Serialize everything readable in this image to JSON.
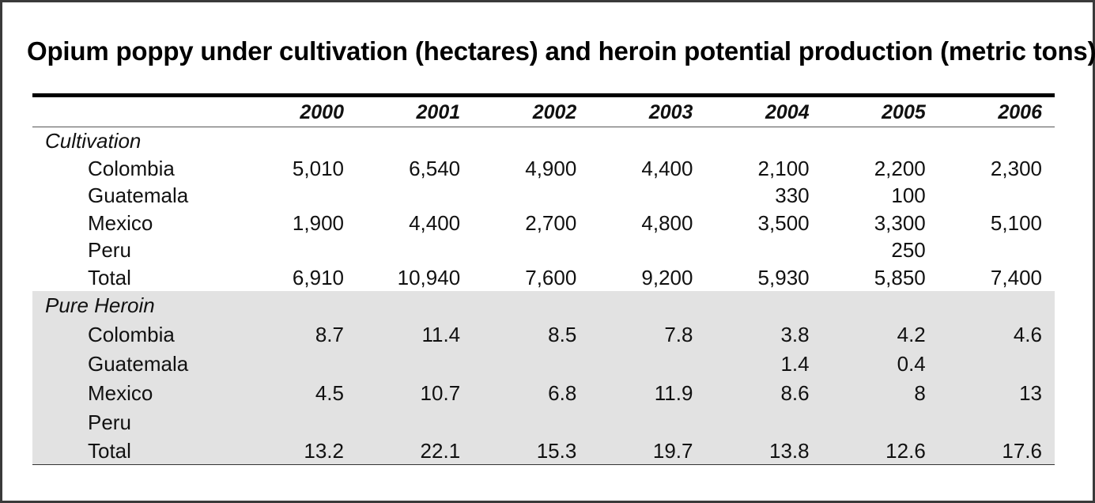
{
  "title": "Opium poppy under cultivation (hectares) and heroin potential production (metric tons)",
  "chart_data": {
    "type": "table",
    "title": "Opium poppy under cultivation (hectares) and heroin potential production (metric tons)",
    "columns": [
      "2000",
      "2001",
      "2002",
      "2003",
      "2004",
      "2005",
      "2006"
    ],
    "sections": [
      {
        "name": "Cultivation",
        "rows": [
          {
            "label": "Colombia",
            "values": [
              "5,010",
              "6,540",
              "4,900",
              "4,400",
              "2,100",
              "2,200",
              "2,300"
            ]
          },
          {
            "label": "Guatemala",
            "values": [
              "",
              "",
              "",
              "",
              "330",
              "100",
              ""
            ]
          },
          {
            "label": "Mexico",
            "values": [
              "1,900",
              "4,400",
              "2,700",
              "4,800",
              "3,500",
              "3,300",
              "5,100"
            ]
          },
          {
            "label": "Peru",
            "values": [
              "",
              "",
              "",
              "",
              "",
              "250",
              ""
            ]
          },
          {
            "label": "Total",
            "values": [
              "6,910",
              "10,940",
              "7,600",
              "9,200",
              "5,930",
              "5,850",
              "7,400"
            ]
          }
        ]
      },
      {
        "name": "Pure Heroin",
        "rows": [
          {
            "label": "Colombia",
            "values": [
              "8.7",
              "11.4",
              "8.5",
              "7.8",
              "3.8",
              "4.2",
              "4.6"
            ]
          },
          {
            "label": "Guatemala",
            "values": [
              "",
              "",
              "",
              "",
              "1.4",
              "0.4",
              ""
            ]
          },
          {
            "label": "Mexico",
            "values": [
              "4.5",
              "10.7",
              "6.8",
              "11.9",
              "8.6",
              "8",
              "13"
            ]
          },
          {
            "label": "Peru",
            "values": [
              "",
              "",
              "",
              "",
              "",
              "",
              ""
            ]
          },
          {
            "label": "Total",
            "values": [
              "13.2",
              "22.1",
              "15.3",
              "19.7",
              "13.8",
              "12.6",
              "17.6"
            ]
          }
        ]
      }
    ]
  },
  "colors": {
    "heroin_section_background": "#e2e2e2",
    "rule": "#000000"
  }
}
